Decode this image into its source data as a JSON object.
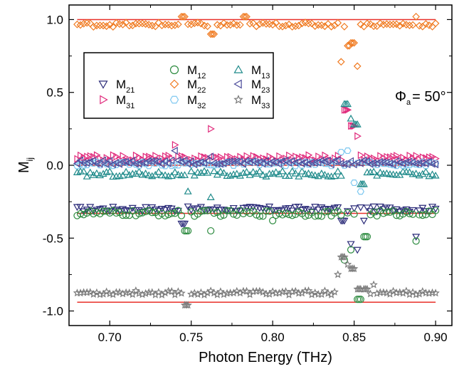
{
  "chart_data": {
    "type": "scatter",
    "xlabel": "Photon Energy (THz)",
    "ylabel_main": "M",
    "ylabel_sub": "ij",
    "xlim": [
      0.675,
      0.91
    ],
    "ylim": [
      -1.1,
      1.1
    ],
    "xticks": [
      0.7,
      0.75,
      0.8,
      0.85,
      0.9
    ],
    "xtick_labels": [
      "0.70",
      "0.75",
      "0.80",
      "0.85",
      "0.90"
    ],
    "yticks": [
      1.0,
      0.5,
      0.0,
      -0.5,
      -1.0
    ],
    "ytick_labels": [
      "1.0",
      "0.5",
      "0.0",
      "-0.5",
      "-1.0"
    ],
    "annotation": {
      "main": "Φ",
      "sub": "a",
      "rest": "= 50°"
    },
    "legend_placement": "upper-left (boxed)",
    "model_line_color": "#e8302a",
    "model_lines": [
      {
        "y": 1.0,
        "x_range": [
          0.68,
          0.9
        ]
      },
      {
        "y": 0.0,
        "x_range": [
          0.68,
          0.9
        ]
      },
      {
        "y": -0.33,
        "x_range": [
          0.68,
          0.9
        ]
      },
      {
        "y": -0.94,
        "x_range": [
          0.68,
          0.9
        ]
      }
    ],
    "series": [
      {
        "name": "M",
        "sub": "21",
        "marker": "triangle-down",
        "color": "#2a2a78",
        "baseline": -0.3,
        "noise": 0.018,
        "step": 0.002,
        "features": [
          [
            0.745,
            -0.4
          ],
          [
            0.835,
            -0.3
          ],
          [
            0.843,
            -0.38
          ],
          [
            0.848,
            -0.54
          ],
          [
            0.852,
            -0.58
          ],
          [
            0.856,
            -0.38
          ],
          [
            0.888,
            -0.49
          ]
        ]
      },
      {
        "name": "M",
        "sub": "12",
        "marker": "circle",
        "color": "#2b8a3e",
        "baseline": -0.33,
        "noise": 0.02,
        "step": 0.002,
        "features": [
          [
            0.747,
            -0.45
          ],
          [
            0.762,
            -0.45
          ],
          [
            0.8,
            -0.38
          ],
          [
            0.844,
            -0.65
          ],
          [
            0.848,
            -0.58
          ],
          [
            0.853,
            -0.92
          ],
          [
            0.857,
            -0.49
          ],
          [
            0.888,
            -0.52
          ]
        ]
      },
      {
        "name": "M",
        "sub": "31",
        "marker": "triangle-right",
        "color": "#e0287a",
        "baseline": 0.05,
        "noise": 0.02,
        "step": 0.002,
        "features": [
          [
            0.74,
            0.14
          ],
          [
            0.762,
            0.25
          ],
          [
            0.845,
            0.38
          ],
          [
            0.849,
            0.27
          ],
          [
            0.852,
            0.2
          ]
        ]
      },
      {
        "name": "M",
        "sub": "22",
        "marker": "diamond",
        "color": "#f07a20",
        "baseline": 0.965,
        "noise": 0.015,
        "step": 0.002,
        "features": [
          [
            0.745,
            1.02
          ],
          [
            0.763,
            0.9
          ],
          [
            0.783,
            1.02
          ],
          [
            0.838,
            0.96
          ],
          [
            0.842,
            0.71
          ],
          [
            0.847,
            0.82
          ],
          [
            0.849,
            0.84
          ],
          [
            0.852,
            0.68
          ],
          [
            0.888,
            1.02
          ]
        ]
      },
      {
        "name": "M",
        "sub": "13",
        "marker": "triangle-up",
        "color": "#1e8a8a",
        "baseline": -0.06,
        "noise": 0.02,
        "step": 0.002,
        "features": [
          [
            0.748,
            -0.18
          ],
          [
            0.762,
            -0.22
          ],
          [
            0.845,
            0.42
          ],
          [
            0.848,
            0.32
          ],
          [
            0.851,
            0.28
          ],
          [
            0.855,
            -0.13
          ]
        ]
      },
      {
        "name": "M",
        "sub": "32",
        "marker": "hexagon",
        "color": "#7ec8f0",
        "baseline": 0.01,
        "noise": 0.015,
        "step": 0.002,
        "features": [
          [
            0.842,
            0.09
          ],
          [
            0.846,
            0.1
          ],
          [
            0.85,
            -0.12
          ],
          [
            0.854,
            -0.18
          ]
        ]
      },
      {
        "name": "M",
        "sub": "23",
        "marker": "triangle-left",
        "color": "#4a4a9a",
        "baseline": 0.02,
        "noise": 0.015,
        "step": 0.002,
        "features": [
          [
            0.74,
            0.1
          ],
          [
            0.762,
            0.06
          ]
        ]
      },
      {
        "name": "M",
        "sub": "33",
        "marker": "star",
        "color": "#7a7a7a",
        "baseline": -0.875,
        "noise": 0.015,
        "step": 0.002,
        "features": [
          [
            0.747,
            -0.96
          ],
          [
            0.84,
            -0.75
          ],
          [
            0.843,
            -0.63
          ],
          [
            0.846,
            -0.68
          ],
          [
            0.849,
            -0.71
          ],
          [
            0.853,
            -0.85
          ],
          [
            0.857,
            -0.85
          ],
          [
            0.862,
            -0.82
          ]
        ]
      }
    ]
  }
}
